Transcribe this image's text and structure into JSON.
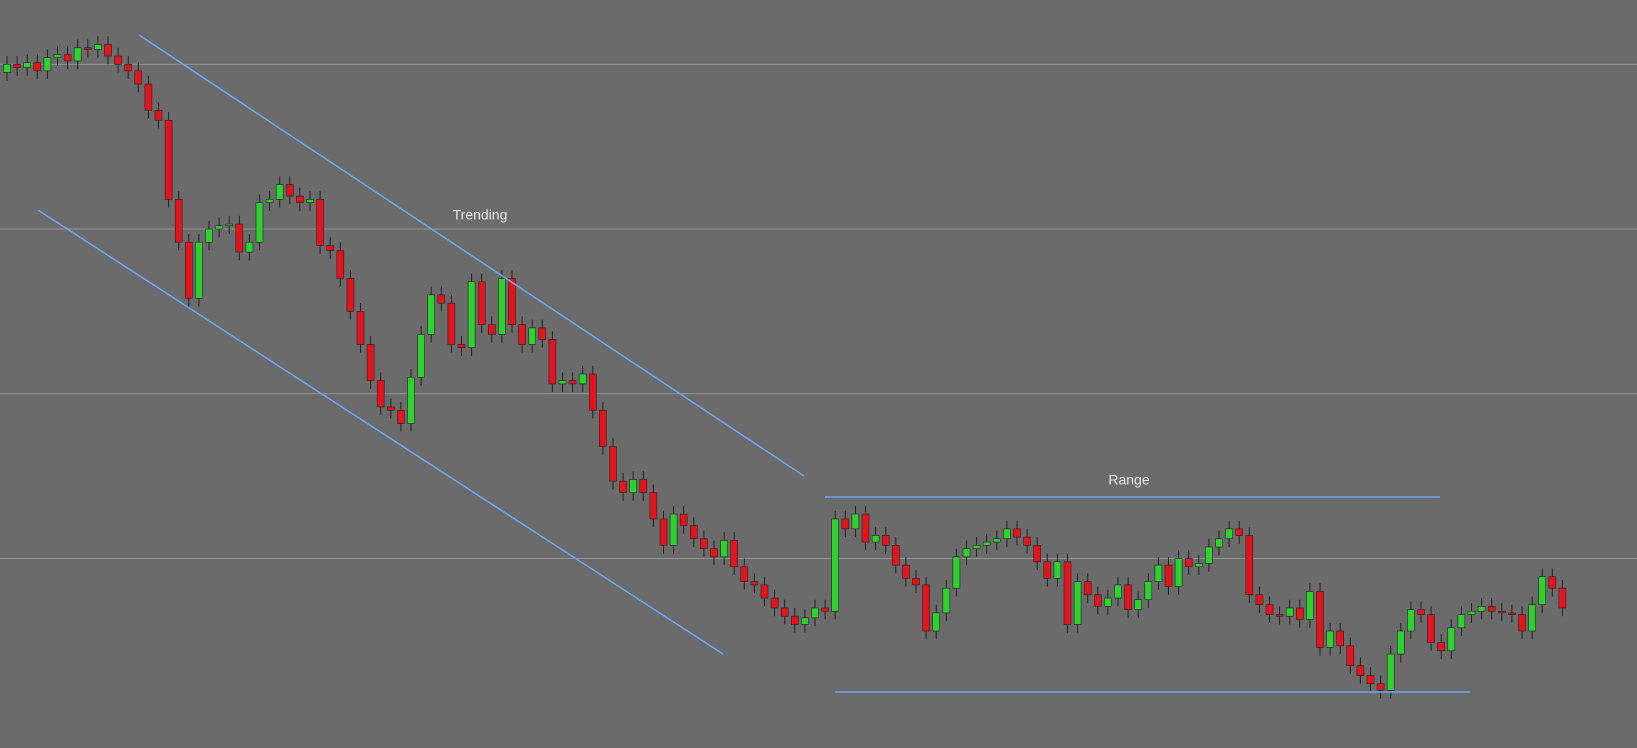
{
  "chart_data": {
    "type": "candlestick",
    "annotations": [
      "Trending",
      "Range"
    ],
    "ylim": [
      -15,
      439
    ],
    "yticks": [
      100,
      200,
      300,
      400
    ],
    "grid": true,
    "up_color": "#2fd12f",
    "down_color": "#e3141e",
    "series": [
      {
        "open": [
          395,
          400,
          398,
          401,
          396,
          404,
          406,
          402,
          410,
          409,
          412,
          405,
          400,
          396,
          388,
          372,
          366,
          318,
          292,
          258,
          292,
          300,
          302,
          303,
          286,
          292,
          316,
          318,
          327,
          320,
          316,
          318,
          290,
          287,
          270,
          250,
          230,
          208,
          192,
          190,
          182,
          210,
          236,
          260,
          255,
          230,
          228,
          268,
          242,
          236,
          270,
          242,
          230,
          240,
          233,
          206,
          208,
          206,
          212,
          190,
          168,
          147,
          140,
          148,
          140,
          124,
          108,
          127,
          120,
          112,
          106,
          101,
          111,
          95,
          86,
          84,
          76,
          70,
          65,
          60,
          64,
          70,
          68,
          124,
          118,
          127,
          110,
          114,
          108,
          96,
          88,
          84,
          56,
          67,
          82,
          101,
          106,
          108,
          110,
          112,
          118,
          113,
          108,
          98,
          88,
          98,
          60,
          86,
          78,
          71,
          76,
          84,
          69,
          75,
          86,
          96,
          83,
          100,
          95,
          97,
          107,
          112,
          118,
          114,
          78,
          72,
          66,
          65,
          70,
          63,
          80,
          46,
          56,
          47,
          35,
          29,
          24,
          20,
          42,
          56,
          69,
          66,
          49,
          44,
          58,
          66,
          68,
          71,
          68,
          67,
          66,
          56,
          72,
          89,
          82
        ],
        "high": [
          405,
          405,
          406,
          406,
          409,
          411,
          411,
          415,
          415,
          417,
          417,
          410,
          405,
          401,
          393,
          377,
          371,
          323,
          297,
          297,
          305,
          307,
          308,
          308,
          297,
          321,
          323,
          332,
          332,
          325,
          323,
          323,
          295,
          292,
          275,
          255,
          235,
          213,
          197,
          195,
          215,
          241,
          265,
          265,
          260,
          235,
          273,
          273,
          247,
          275,
          275,
          247,
          245,
          245,
          238,
          213,
          213,
          217,
          217,
          195,
          173,
          152,
          153,
          153,
          145,
          129,
          132,
          132,
          125,
          117,
          111,
          116,
          116,
          100,
          91,
          89,
          81,
          75,
          70,
          69,
          75,
          75,
          129,
          129,
          132,
          132,
          119,
          119,
          113,
          101,
          93,
          89,
          72,
          87,
          106,
          111,
          113,
          115,
          117,
          123,
          123,
          118,
          113,
          103,
          103,
          103,
          91,
          91,
          83,
          81,
          89,
          89,
          80,
          91,
          101,
          101,
          105,
          105,
          102,
          112,
          117,
          123,
          123,
          119,
          83,
          77,
          71,
          75,
          75,
          85,
          85,
          61,
          61,
          52,
          40,
          34,
          29,
          47,
          61,
          74,
          74,
          71,
          54,
          63,
          71,
          73,
          76,
          76,
          73,
          72,
          71,
          77,
          94,
          94,
          87
        ],
        "low": [
          390,
          393,
          393,
          391,
          391,
          399,
          397,
          397,
          404,
          404,
          400,
          395,
          391,
          383,
          367,
          361,
          313,
          287,
          253,
          253,
          287,
          295,
          297,
          281,
          281,
          287,
          311,
          313,
          315,
          311,
          311,
          285,
          282,
          265,
          245,
          225,
          203,
          187,
          185,
          177,
          177,
          205,
          231,
          250,
          225,
          223,
          223,
          237,
          231,
          231,
          237,
          225,
          225,
          228,
          201,
          201,
          201,
          201,
          185,
          163,
          142,
          135,
          135,
          135,
          119,
          103,
          103,
          115,
          107,
          101,
          96,
          96,
          90,
          81,
          79,
          71,
          65,
          60,
          55,
          55,
          59,
          63,
          63,
          113,
          113,
          105,
          105,
          103,
          91,
          83,
          79,
          51,
          51,
          62,
          77,
          96,
          101,
          103,
          105,
          107,
          108,
          103,
          93,
          83,
          83,
          55,
          55,
          73,
          66,
          66,
          71,
          64,
          64,
          70,
          81,
          78,
          78,
          90,
          90,
          92,
          102,
          107,
          109,
          73,
          67,
          61,
          60,
          60,
          58,
          58,
          41,
          41,
          42,
          30,
          24,
          19,
          15,
          15,
          37,
          51,
          61,
          44,
          39,
          39,
          53,
          61,
          63,
          63,
          62,
          61,
          51,
          51,
          67,
          77,
          65
        ],
        "close": [
          400,
          398,
          401,
          396,
          404,
          406,
          402,
          410,
          409,
          412,
          405,
          400,
          396,
          388,
          372,
          366,
          318,
          292,
          258,
          292,
          300,
          302,
          303,
          286,
          292,
          316,
          318,
          327,
          320,
          316,
          318,
          290,
          287,
          270,
          250,
          230,
          208,
          192,
          190,
          182,
          210,
          236,
          260,
          255,
          230,
          228,
          268,
          242,
          236,
          270,
          242,
          230,
          240,
          233,
          206,
          208,
          206,
          212,
          190,
          168,
          147,
          140,
          148,
          140,
          124,
          108,
          127,
          120,
          112,
          106,
          101,
          111,
          95,
          86,
          84,
          76,
          70,
          65,
          60,
          64,
          70,
          68,
          124,
          118,
          127,
          110,
          114,
          108,
          96,
          88,
          84,
          56,
          67,
          82,
          101,
          106,
          108,
          110,
          112,
          118,
          113,
          108,
          98,
          88,
          98,
          60,
          86,
          78,
          71,
          76,
          84,
          69,
          75,
          86,
          96,
          83,
          100,
          95,
          97,
          107,
          112,
          118,
          114,
          78,
          72,
          66,
          65,
          70,
          63,
          80,
          46,
          56,
          47,
          35,
          29,
          24,
          20,
          42,
          56,
          69,
          66,
          49,
          44,
          58,
          66,
          68,
          71,
          68,
          67,
          66,
          56,
          72,
          89,
          82,
          70
        ]
      }
    ]
  }
}
